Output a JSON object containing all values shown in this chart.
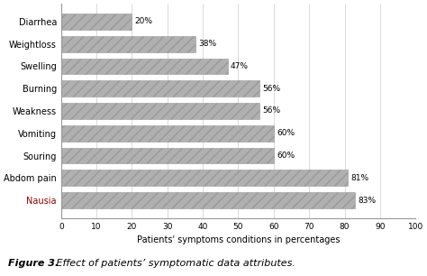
{
  "categories": [
    "Diarrhea",
    "Weightloss",
    "Swelling",
    "Burning",
    "Weakness",
    "Vomiting",
    "Souring",
    "Abdom pain",
    "Nausia"
  ],
  "values": [
    20,
    38,
    47,
    56,
    56,
    60,
    60,
    81,
    83
  ],
  "bar_color": "#b0b0b0",
  "xlabel": "Patients' symptoms conditions in percentages",
  "xlim": [
    0,
    100
  ],
  "xticks": [
    0,
    10,
    20,
    30,
    40,
    50,
    60,
    70,
    80,
    90,
    100
  ],
  "figure_caption_bold": "Figure 3.",
  "figure_caption_italic": " Effect of patients’ symptomatic data attributes.",
  "background_color": "#ffffff",
  "bar_hatch": "///",
  "value_labels": [
    "20%",
    "38%",
    "47%",
    "56%",
    "56%",
    "60%",
    "60%",
    "81%",
    "83%"
  ],
  "nausia_color": "#8b0000"
}
